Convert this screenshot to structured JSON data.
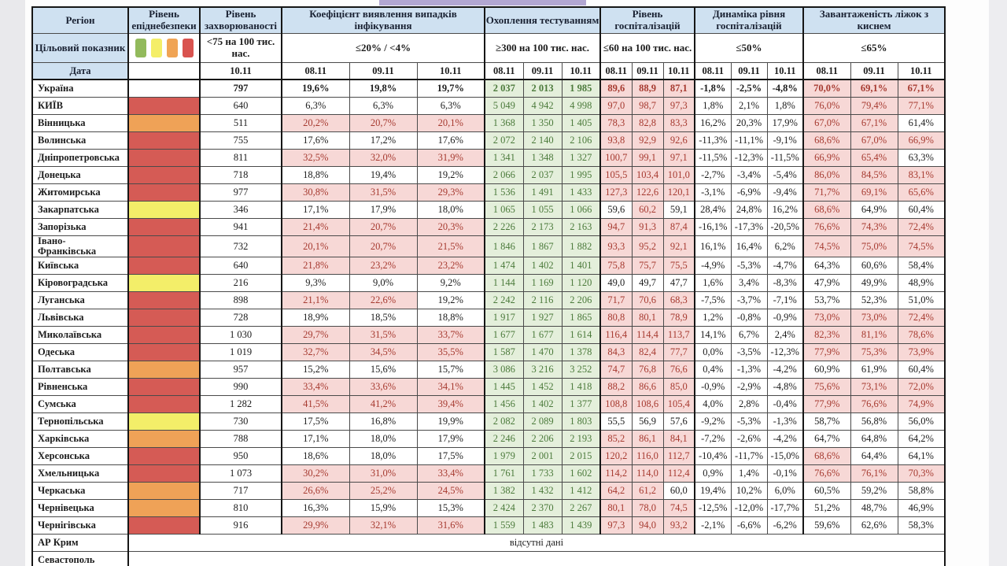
{
  "colors": {
    "head_bg": "#cfe1f1",
    "head_text": "#1a2233",
    "red_bg": "#f7d8d6",
    "red_text": "#a63a30",
    "green_bg": "#e4efdb",
    "green_text": "#4b7a3b",
    "danger_red": "#d55b55",
    "danger_orange": "#efa257",
    "danger_yellow": "#f3ee69",
    "lavender_strip": "#b2a7d2"
  },
  "table": {
    "region_header": "Регіон",
    "danger_header": "Рівень епіднебезпеки",
    "target_row_label": "Цільовий показник",
    "date_row_label": "Дата",
    "legend_colors": [
      "#92ba5c",
      "#f4ee68",
      "#f0a455",
      "#d9534f"
    ],
    "groups": [
      {
        "title": "Рівень захворюваності",
        "target": "<75 на 100 тис. нас.",
        "dates": [
          "10.11"
        ],
        "highlight": "none",
        "threshold": null
      },
      {
        "title": "Коефіцієнт виявлення випадків інфікування",
        "target": "≤20% / <4%",
        "dates": [
          "08.11",
          "09.11",
          "10.11"
        ],
        "highlight": "red_above",
        "threshold": 20
      },
      {
        "title": "Охоплення тестуванням",
        "target": "≥300 на 100 тис. нас.",
        "dates": [
          "08.11",
          "09.11",
          "10.11"
        ],
        "highlight": "green_min",
        "threshold": 300
      },
      {
        "title": "Рівень госпіталізацій",
        "target": "≤60 на 100 тис. нас.",
        "dates": [
          "08.11",
          "09.11",
          "10.11"
        ],
        "highlight": "red_above",
        "threshold": 60
      },
      {
        "title": "Динаміка рівня госпіталізацій",
        "target": "≤50%",
        "dates": [
          "08.11",
          "09.11",
          "10.11"
        ],
        "highlight": "none",
        "threshold": null
      },
      {
        "title": "Завантаженість ліжок з киснем",
        "target": "≤65%",
        "dates": [
          "08.11",
          "09.11",
          "10.11"
        ],
        "highlight": "red_above",
        "threshold": 65
      }
    ],
    "rows": [
      {
        "region": "Україна",
        "danger": null,
        "bold": true,
        "values": [
          "797",
          "19,6%",
          "19,8%",
          "19,7%",
          "2 037",
          "2 013",
          "1 985",
          "89,6",
          "88,9",
          "87,1",
          "-1,8%",
          "-2,5%",
          "-4,8%",
          "70,0%",
          "69,1%",
          "67,1%"
        ]
      },
      {
        "region": "КИЇВ",
        "danger": "red",
        "bold": false,
        "values": [
          "640",
          "6,3%",
          "6,3%",
          "6,3%",
          "5 049",
          "4 942",
          "4 998",
          "97,0",
          "98,7",
          "97,3",
          "1,8%",
          "2,1%",
          "1,8%",
          "76,0%",
          "79,4%",
          "77,1%"
        ]
      },
      {
        "region": "Вінницька",
        "danger": "orange",
        "bold": false,
        "values": [
          "511",
          "20,2%",
          "20,7%",
          "20,1%",
          "1 368",
          "1 350",
          "1 405",
          "78,3",
          "82,8",
          "83,3",
          "16,2%",
          "20,3%",
          "17,9%",
          "67,0%",
          "67,1%",
          "61,4%"
        ]
      },
      {
        "region": "Волинська",
        "danger": "red",
        "bold": false,
        "values": [
          "755",
          "17,6%",
          "17,2%",
          "17,6%",
          "2 072",
          "2 140",
          "2 106",
          "93,8",
          "92,9",
          "92,6",
          "-11,3%",
          "-11,1%",
          "-9,1%",
          "68,6%",
          "67,0%",
          "66,9%"
        ]
      },
      {
        "region": "Дніпропетровська",
        "danger": "red",
        "bold": false,
        "values": [
          "811",
          "32,5%",
          "32,0%",
          "31,9%",
          "1 341",
          "1 348",
          "1 327",
          "100,7",
          "99,1",
          "97,1",
          "-11,5%",
          "-12,3%",
          "-11,5%",
          "66,9%",
          "65,4%",
          "63,3%"
        ]
      },
      {
        "region": "Донецька",
        "danger": "red",
        "bold": false,
        "values": [
          "718",
          "18,8%",
          "19,4%",
          "19,2%",
          "2 066",
          "2 037",
          "1 995",
          "105,5",
          "103,4",
          "101,0",
          "-2,7%",
          "-3,4%",
          "-5,4%",
          "86,0%",
          "84,5%",
          "83,1%"
        ]
      },
      {
        "region": "Житомирська",
        "danger": "red",
        "bold": false,
        "values": [
          "977",
          "30,8%",
          "31,5%",
          "29,3%",
          "1 536",
          "1 491",
          "1 433",
          "127,3",
          "122,6",
          "120,1",
          "-3,1%",
          "-6,9%",
          "-9,4%",
          "71,7%",
          "69,1%",
          "65,6%"
        ]
      },
      {
        "region": "Закарпатська",
        "danger": "yellow",
        "bold": false,
        "values": [
          "346",
          "17,1%",
          "17,9%",
          "18,0%",
          "1 065",
          "1 055",
          "1 066",
          "59,6",
          "60,2",
          "59,1",
          "28,4%",
          "24,8%",
          "16,2%",
          "68,6%",
          "64,9%",
          "60,4%"
        ]
      },
      {
        "region": "Запорізька",
        "danger": "red",
        "bold": false,
        "values": [
          "941",
          "21,4%",
          "20,7%",
          "20,3%",
          "2 226",
          "2 173",
          "2 163",
          "94,7",
          "91,3",
          "87,4",
          "-16,1%",
          "-17,3%",
          "-20,5%",
          "76,6%",
          "74,3%",
          "72,4%"
        ]
      },
      {
        "region": "Івано-\nФранківська",
        "danger": "red",
        "bold": false,
        "values": [
          "732",
          "20,1%",
          "20,7%",
          "21,5%",
          "1 846",
          "1 867",
          "1 882",
          "93,3",
          "95,2",
          "92,1",
          "16,1%",
          "16,4%",
          "6,2%",
          "74,5%",
          "75,0%",
          "74,5%"
        ]
      },
      {
        "region": "Київська",
        "danger": "red",
        "bold": false,
        "values": [
          "640",
          "21,8%",
          "23,2%",
          "23,2%",
          "1 474",
          "1 402",
          "1 401",
          "75,8",
          "75,7",
          "75,5",
          "-4,9%",
          "-5,3%",
          "-4,7%",
          "64,3%",
          "60,6%",
          "58,4%"
        ]
      },
      {
        "region": "Кіровоградська",
        "danger": "yellow",
        "bold": false,
        "values": [
          "216",
          "9,3%",
          "9,0%",
          "9,2%",
          "1 144",
          "1 169",
          "1 120",
          "49,0",
          "49,7",
          "47,7",
          "1,6%",
          "3,4%",
          "-8,3%",
          "47,9%",
          "49,9%",
          "48,9%"
        ]
      },
      {
        "region": "Луганська",
        "danger": "red",
        "bold": false,
        "values": [
          "898",
          "21,1%",
          "22,6%",
          "19,2%",
          "2 242",
          "2 116",
          "2 206",
          "71,7",
          "70,6",
          "68,3",
          "-7,5%",
          "-3,7%",
          "-7,1%",
          "53,7%",
          "52,3%",
          "51,0%"
        ]
      },
      {
        "region": "Львівська",
        "danger": "red",
        "bold": false,
        "values": [
          "728",
          "18,9%",
          "18,5%",
          "18,8%",
          "1 917",
          "1 927",
          "1 865",
          "80,8",
          "80,1",
          "78,9",
          "1,2%",
          "-0,8%",
          "-0,9%",
          "73,0%",
          "73,0%",
          "72,4%"
        ]
      },
      {
        "region": "Миколаївська",
        "danger": "red",
        "bold": false,
        "values": [
          "1 030",
          "29,7%",
          "31,5%",
          "33,7%",
          "1 677",
          "1 677",
          "1 614",
          "116,4",
          "114,4",
          "113,7",
          "14,1%",
          "6,7%",
          "2,4%",
          "82,3%",
          "81,1%",
          "78,6%"
        ]
      },
      {
        "region": "Одеська",
        "danger": "red",
        "bold": false,
        "values": [
          "1 019",
          "32,7%",
          "34,5%",
          "35,5%",
          "1 587",
          "1 470",
          "1 378",
          "84,3",
          "82,4",
          "77,7",
          "0,0%",
          "-3,5%",
          "-12,3%",
          "77,9%",
          "75,3%",
          "73,9%"
        ]
      },
      {
        "region": "Полтавська",
        "danger": "orange",
        "bold": false,
        "values": [
          "957",
          "15,2%",
          "15,6%",
          "15,7%",
          "3 086",
          "3 216",
          "3 252",
          "74,7",
          "76,8",
          "76,6",
          "0,4%",
          "-1,3%",
          "-4,2%",
          "60,9%",
          "61,9%",
          "60,4%"
        ]
      },
      {
        "region": "Рівненська",
        "danger": "red",
        "bold": false,
        "values": [
          "990",
          "33,4%",
          "33,6%",
          "34,1%",
          "1 445",
          "1 452",
          "1 418",
          "88,2",
          "86,6",
          "85,0",
          "-0,9%",
          "-2,9%",
          "-4,8%",
          "75,6%",
          "73,1%",
          "72,0%"
        ]
      },
      {
        "region": "Сумська",
        "danger": "red",
        "bold": false,
        "values": [
          "1 282",
          "41,5%",
          "41,2%",
          "39,4%",
          "1 456",
          "1 402",
          "1 377",
          "108,8",
          "108,6",
          "105,4",
          "4,0%",
          "2,8%",
          "-0,4%",
          "77,9%",
          "76,6%",
          "74,9%"
        ]
      },
      {
        "region": "Тернопільська",
        "danger": "yellow",
        "bold": false,
        "values": [
          "730",
          "17,5%",
          "16,8%",
          "19,9%",
          "2 082",
          "2 089",
          "1 803",
          "55,5",
          "56,9",
          "57,6",
          "-9,2%",
          "-5,3%",
          "-1,3%",
          "58,7%",
          "56,8%",
          "56,0%"
        ]
      },
      {
        "region": "Харківська",
        "danger": "orange",
        "bold": false,
        "values": [
          "788",
          "17,1%",
          "18,0%",
          "17,9%",
          "2 246",
          "2 206",
          "2 193",
          "85,2",
          "86,1",
          "84,1",
          "-7,2%",
          "-2,6%",
          "-4,2%",
          "64,7%",
          "64,8%",
          "64,2%"
        ]
      },
      {
        "region": "Херсонська",
        "danger": "red",
        "bold": false,
        "values": [
          "950",
          "18,6%",
          "18,0%",
          "17,5%",
          "1 979",
          "2 001",
          "2 015",
          "120,2",
          "116,0",
          "112,7",
          "-10,4%",
          "-11,7%",
          "-15,0%",
          "68,6%",
          "64,4%",
          "64,1%"
        ]
      },
      {
        "region": "Хмельницька",
        "danger": "red",
        "bold": false,
        "values": [
          "1 073",
          "30,2%",
          "31,0%",
          "33,4%",
          "1 761",
          "1 733",
          "1 602",
          "114,2",
          "114,0",
          "112,4",
          "0,9%",
          "1,4%",
          "-0,1%",
          "76,6%",
          "76,1%",
          "70,3%"
        ]
      },
      {
        "region": "Черкаська",
        "danger": "orange",
        "bold": false,
        "values": [
          "717",
          "26,6%",
          "25,2%",
          "24,5%",
          "1 382",
          "1 432",
          "1 412",
          "64,2",
          "61,2",
          "60,0",
          "19,4%",
          "10,2%",
          "6,0%",
          "60,5%",
          "59,2%",
          "58,8%"
        ]
      },
      {
        "region": "Чернівецька",
        "danger": "orange",
        "bold": false,
        "values": [
          "810",
          "16,3%",
          "15,9%",
          "15,3%",
          "2 424",
          "2 370",
          "2 267",
          "80,1",
          "78,0",
          "74,5",
          "-12,5%",
          "-12,0%",
          "-17,7%",
          "51,2%",
          "48,7%",
          "46,9%"
        ]
      },
      {
        "region": "Чернігівська",
        "danger": "red",
        "bold": false,
        "values": [
          "916",
          "29,9%",
          "32,1%",
          "31,6%",
          "1 559",
          "1 483",
          "1 439",
          "97,3",
          "94,0",
          "93,2",
          "-2,1%",
          "-6,6%",
          "-6,2%",
          "59,6%",
          "62,6%",
          "58,3%"
        ]
      }
    ],
    "no_data_rows": [
      {
        "region": "АР Крим",
        "note": "відсутні дані"
      },
      {
        "region": "Севастополь",
        "note": ""
      }
    ]
  }
}
